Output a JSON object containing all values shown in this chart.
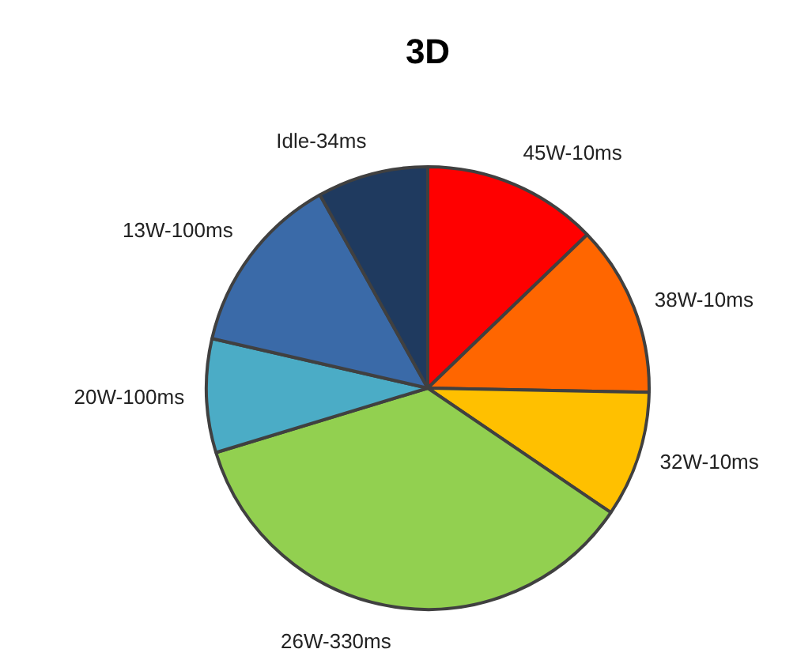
{
  "chart_data": {
    "type": "pie",
    "title": "3D",
    "categories": [
      "45W-10ms",
      "38W-10ms",
      "32W-10ms",
      "26W-330ms",
      "20W-100ms",
      "13W-100ms",
      "Idle-34ms"
    ],
    "values": [
      12.8,
      12.5,
      9.2,
      35.8,
      8.3,
      13.3,
      8.1
    ],
    "colors": [
      "#ff0000",
      "#ff6600",
      "#ffc000",
      "#92d050",
      "#4bacc6",
      "#3a6aa8",
      "#1f3a5f"
    ]
  }
}
